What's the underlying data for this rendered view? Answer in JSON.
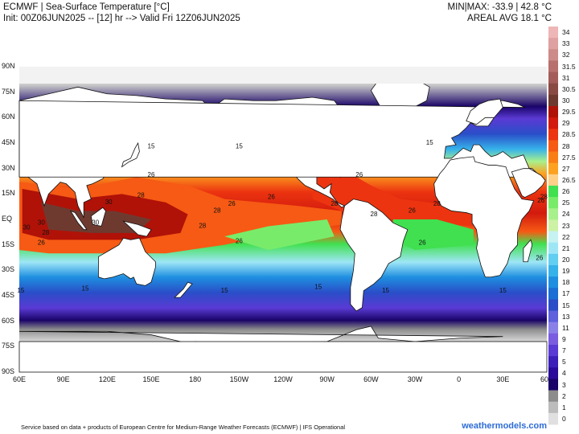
{
  "header": {
    "title_line1": "ECMWF | Sea-Surface Temperature [°C]",
    "title_line2": "Init: 00Z06JUN2025 -- [12] hr --> Valid Fri 12Z06JUN2025",
    "minmax_line": "MIN|MAX: -33.9 | 42.8 °C",
    "areal_avg_line": "AREAL AVG 18.1 °C"
  },
  "map": {
    "lat_labels": [
      "90N",
      "75N",
      "60N",
      "45N",
      "30N",
      "15N",
      "EQ",
      "15S",
      "30S",
      "45S",
      "60S",
      "75S",
      "90S"
    ],
    "lon_labels": [
      "60E",
      "90E",
      "120E",
      "150E",
      "180",
      "150W",
      "120W",
      "90W",
      "60W",
      "30W",
      "0",
      "30E",
      "60E"
    ],
    "ocean_labels": [
      {
        "text": "15",
        "lon": 150,
        "lat": 42
      },
      {
        "text": "15",
        "lon": -150,
        "lat": 42
      },
      {
        "text": "15",
        "lon": -20,
        "lat": 44
      },
      {
        "text": "26",
        "lon": 150,
        "lat": 25
      },
      {
        "text": "26",
        "lon": -155,
        "lat": 8
      },
      {
        "text": "26",
        "lon": -68,
        "lat": 25
      },
      {
        "text": "26",
        "lon": -32,
        "lat": 4
      },
      {
        "text": "26",
        "lon": 56,
        "lat": 10
      },
      {
        "text": "26",
        "lon": -128,
        "lat": 12
      },
      {
        "text": "28",
        "lon": 143,
        "lat": 13
      },
      {
        "text": "28",
        "lon": -165,
        "lat": 4
      },
      {
        "text": "28",
        "lon": -175,
        "lat": -5
      },
      {
        "text": "28",
        "lon": -85,
        "lat": 8
      },
      {
        "text": "28",
        "lon": -58,
        "lat": 2
      },
      {
        "text": "28",
        "lon": -15,
        "lat": 8
      },
      {
        "text": "28",
        "lon": 58,
        "lat": 12
      },
      {
        "text": "30",
        "lon": 112,
        "lat": -3
      },
      {
        "text": "30",
        "lon": 65,
        "lat": -6
      },
      {
        "text": "28",
        "lon": 78,
        "lat": -9
      },
      {
        "text": "26",
        "lon": 75,
        "lat": -15
      },
      {
        "text": "26",
        "lon": -150,
        "lat": -14
      },
      {
        "text": "26",
        "lon": -25,
        "lat": -15
      },
      {
        "text": "26",
        "lon": 55,
        "lat": -24
      },
      {
        "text": "15",
        "lon": 105,
        "lat": -42
      },
      {
        "text": "15",
        "lon": -160,
        "lat": -43
      },
      {
        "text": "15",
        "lon": -96,
        "lat": -41
      },
      {
        "text": "15",
        "lon": -50,
        "lat": -43
      },
      {
        "text": "15",
        "lon": 30,
        "lat": -43
      },
      {
        "text": "15",
        "lon": 61,
        "lat": -43
      },
      {
        "text": "30",
        "lon": 75,
        "lat": -3
      },
      {
        "text": "30",
        "lon": 121,
        "lat": 9
      }
    ]
  },
  "colorbar": {
    "stops": [
      {
        "label": "34",
        "color": "#eeb6b6"
      },
      {
        "label": "33",
        "color": "#dea0a0"
      },
      {
        "label": "32",
        "color": "#cc8a88"
      },
      {
        "label": "31.5",
        "color": "#b8706e"
      },
      {
        "label": "31",
        "color": "#a45c5a"
      },
      {
        "label": "30.5",
        "color": "#8a4a44"
      },
      {
        "label": "30",
        "color": "#6e3a30"
      },
      {
        "label": "29.5",
        "color": "#b01208"
      },
      {
        "label": "29",
        "color": "#d21a0e"
      },
      {
        "label": "28.5",
        "color": "#ec3410"
      },
      {
        "label": "28",
        "color": "#f65a14"
      },
      {
        "label": "27.5",
        "color": "#fa7e16"
      },
      {
        "label": "27",
        "color": "#fca220"
      },
      {
        "label": "26.5",
        "color": "#fed088"
      },
      {
        "label": "26",
        "color": "#40e050"
      },
      {
        "label": "25",
        "color": "#78ec6a"
      },
      {
        "label": "24",
        "color": "#a8f08c"
      },
      {
        "label": "23",
        "color": "#cdf2a6"
      },
      {
        "label": "22",
        "color": "#c6f2f2"
      },
      {
        "label": "21",
        "color": "#9ee6f6"
      },
      {
        "label": "20",
        "color": "#62cef2"
      },
      {
        "label": "19",
        "color": "#36b2ea"
      },
      {
        "label": "18",
        "color": "#1e8ee0"
      },
      {
        "label": "17",
        "color": "#1a6ed4"
      },
      {
        "label": "15",
        "color": "#2a4ec8"
      },
      {
        "label": "13",
        "color": "#5e60dc"
      },
      {
        "label": "11",
        "color": "#8a80e8"
      },
      {
        "label": "9",
        "color": "#7a5ce0"
      },
      {
        "label": "7",
        "color": "#5a3ad4"
      },
      {
        "label": "5",
        "color": "#3c1eb8"
      },
      {
        "label": "4",
        "color": "#2a0a9a"
      },
      {
        "label": "3",
        "color": "#1a0468"
      },
      {
        "label": "2",
        "color": "#8c8c8c"
      },
      {
        "label": "1",
        "color": "#bcbcbc"
      },
      {
        "label": "0",
        "color": "#e0e0e0"
      }
    ]
  },
  "footer": {
    "credit": "Service based on data + products of European Centre for Medium-Range Weather Forecasts (ECMWF) | IFS Operational",
    "site": "weathermodels.com"
  }
}
